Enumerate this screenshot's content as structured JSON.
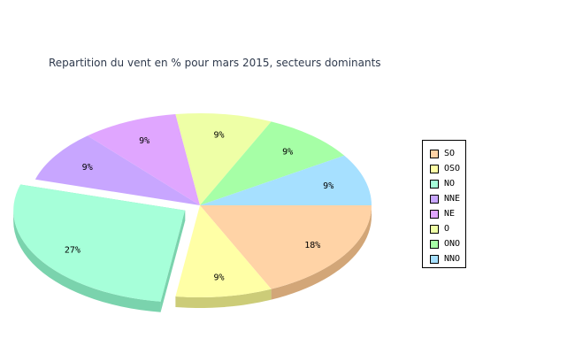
{
  "chart_data": {
    "type": "pie",
    "title": "Repartition du vent en % pour mars 2015, secteurs dominants",
    "slices": [
      {
        "name": "SO",
        "value": 18,
        "label": "18%",
        "color": "#ffd3a6",
        "side": "#d2a678"
      },
      {
        "name": "OSO",
        "value": 9,
        "label": "9%",
        "color": "#ffffa6",
        "side": "#cccc78"
      },
      {
        "name": "NO",
        "value": 27,
        "label": "27%",
        "color": "#a6ffd9",
        "side": "#7ad3ad",
        "exploded": true
      },
      {
        "name": "NNE",
        "value": 9,
        "label": "9%",
        "color": "#c8a6ff",
        "side": "#9a7ad3"
      },
      {
        "name": "NE",
        "value": 9,
        "label": "9%",
        "color": "#e0a6ff",
        "side": "#b47ad3"
      },
      {
        "name": "O",
        "value": 9,
        "label": "9%",
        "color": "#eeffa6",
        "side": "#c2d37a"
      },
      {
        "name": "ONO",
        "value": 9,
        "label": "9%",
        "color": "#a6ffa6",
        "side": "#7ad37a"
      },
      {
        "name": "NNO",
        "value": 9,
        "label": "9%",
        "color": "#a6e0ff",
        "side": "#7ab4d3"
      }
    ],
    "legend_position": "right"
  }
}
